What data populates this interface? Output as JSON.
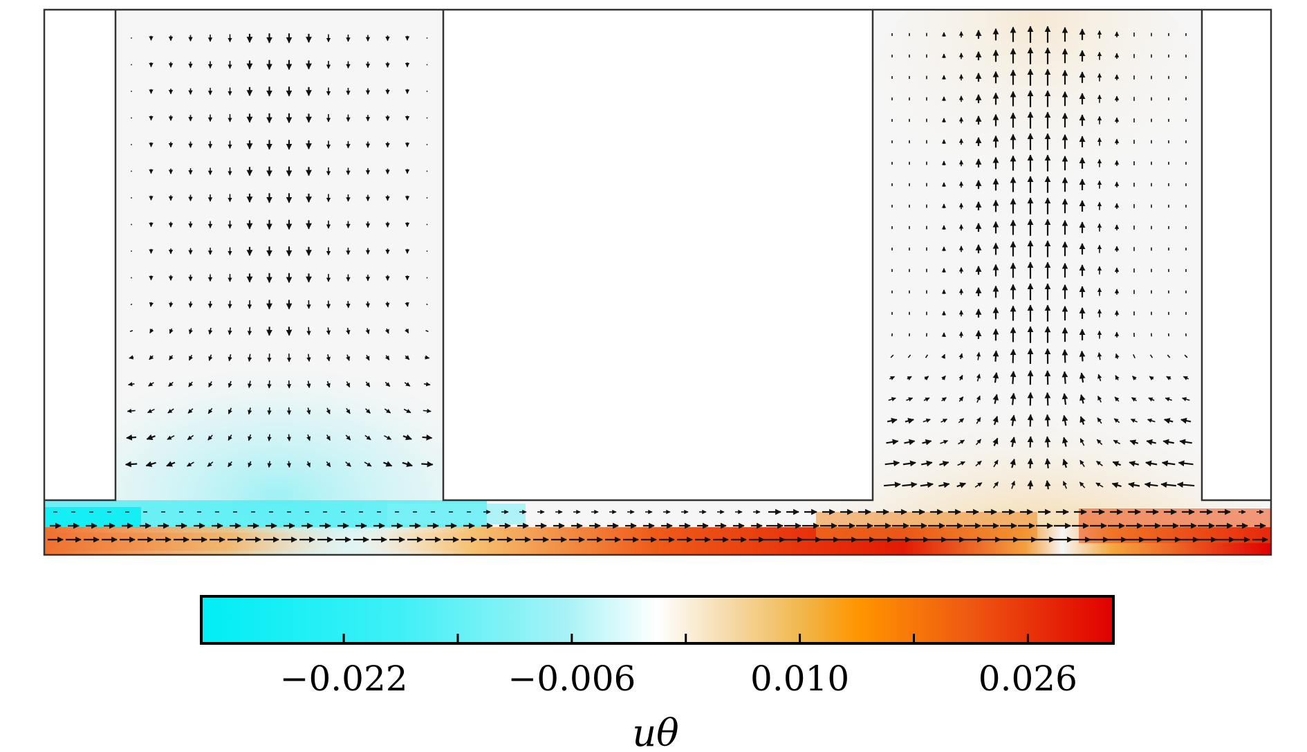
{
  "chart_data": {
    "type": "heatmap",
    "title": "",
    "xlabel": "",
    "ylabel": "",
    "colorbar": {
      "label": "uθ",
      "range": [
        -0.032,
        0.032
      ],
      "ticks": [
        -0.022,
        -0.006,
        0.01,
        0.026
      ],
      "tick_labels": [
        "−0.022",
        "−0.006",
        "0.010",
        "0.026"
      ],
      "minor_ticks": [
        -0.014,
        0.002,
        0.018
      ],
      "colormap": [
        "#00eef5",
        "#8af2f7",
        "#ffffff",
        "#f3c36d",
        "#ff8c00",
        "#ee4a10",
        "#e00000"
      ]
    },
    "field": {
      "regions": [
        {
          "name": "left-column",
          "sign": "negative",
          "peak": -0.022
        },
        {
          "name": "bottom-channel-upper-left",
          "sign": "negative",
          "peak": -0.026
        },
        {
          "name": "bottom-channel-lower",
          "sign": "positive",
          "peak": 0.03
        },
        {
          "name": "right-column",
          "sign": "positive",
          "peak": 0.018
        }
      ],
      "flow_arrows": {
        "left_column": "downward flow, spreading outward near the channel",
        "right_column": "upward jet along the center line",
        "channel": "rightward flow along the lower channel"
      }
    },
    "grid": false
  },
  "colors": {
    "domain_fill": "#f6f6f6",
    "outline": "#333333",
    "arrow": "#111111"
  }
}
